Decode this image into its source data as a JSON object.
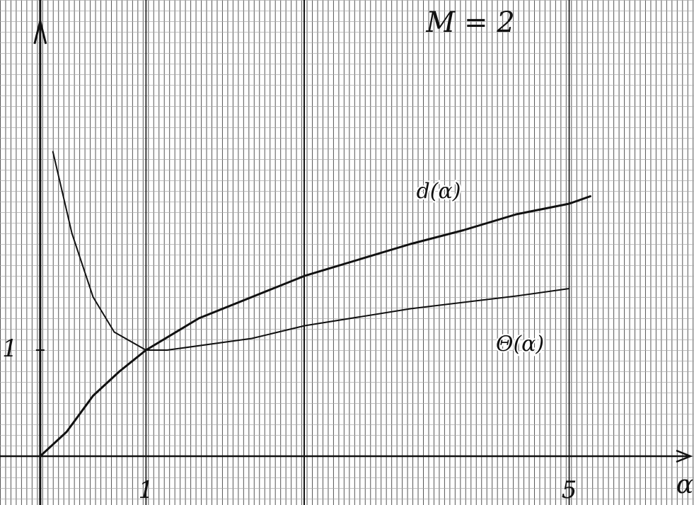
{
  "chart_data": {
    "type": "line",
    "title": "M = 2",
    "x_label": "α",
    "xlim": [
      -0.38,
      6.18
    ],
    "ylim": [
      -0.46,
      4.3
    ],
    "xticks": [
      1,
      5
    ],
    "yticks": [
      1
    ],
    "grid": true,
    "series": [
      {
        "name": "d(α)",
        "color": "#111111",
        "width": 3,
        "x": [
          0,
          0.25,
          0.5,
          0.75,
          1,
          1.5,
          2,
          2.5,
          3,
          3.5,
          4,
          4.5,
          5,
          5.2
        ],
        "values": [
          0,
          0.23,
          0.57,
          0.8,
          1.0,
          1.3,
          1.5,
          1.7,
          1.85,
          2.0,
          2.13,
          2.28,
          2.38,
          2.45
        ]
      },
      {
        "name": "Θ(α)",
        "color": "#111111",
        "width": 2,
        "x": [
          0.12,
          0.3,
          0.5,
          0.7,
          1,
          1.2,
          2,
          2.5,
          3.5,
          4.5,
          5
        ],
        "values": [
          2.87,
          2.1,
          1.5,
          1.17,
          1.0,
          1.0,
          1.11,
          1.23,
          1.39,
          1.51,
          1.58
        ]
      }
    ]
  }
}
